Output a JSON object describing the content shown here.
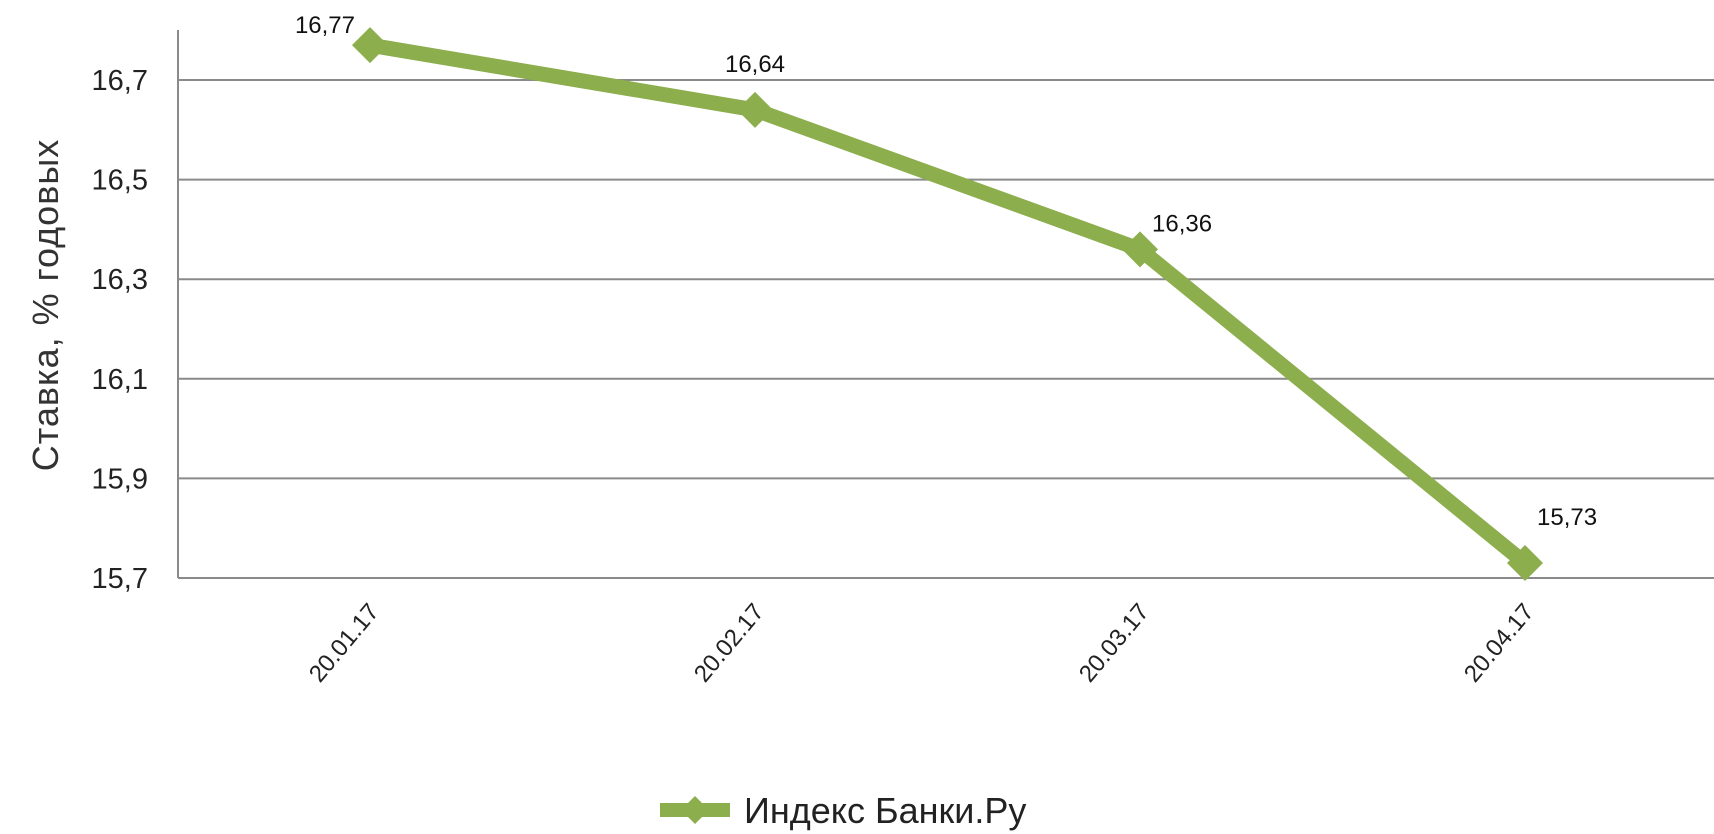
{
  "chart_data": {
    "type": "line",
    "title": "",
    "xlabel": "",
    "ylabel": "Ставка, % годовых",
    "categories": [
      "20.01.17",
      "20.02.17",
      "20.03.17",
      "20.04.17"
    ],
    "series": [
      {
        "name": "Индекс Банки.Ру",
        "values": [
          16.77,
          16.64,
          16.36,
          15.73
        ],
        "value_labels": [
          "16,77",
          "16,64",
          "16,36",
          "15,73"
        ],
        "color": "#8cae4d",
        "marker": "diamond"
      }
    ],
    "yticks": [
      15.7,
      15.9,
      16.1,
      16.3,
      16.5,
      16.7
    ],
    "ytick_labels": [
      "15,7",
      "15,9",
      "16,1",
      "16,3",
      "16,5",
      "16,7"
    ],
    "ylim": [
      15.7,
      16.8
    ],
    "grid": true,
    "legend": "bottom-center"
  }
}
